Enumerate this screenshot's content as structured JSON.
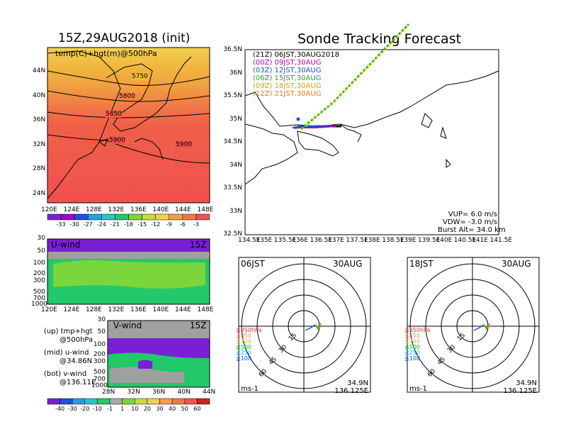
{
  "left_title": "15Z,29AUG2018 (init)",
  "right_title": "Sonde Tracking Forecast",
  "temp_panel": {
    "label": "temp(C)+hgt(m)@500hPa",
    "contours": [
      "5750",
      "5800",
      "5850",
      "5900",
      "5900"
    ],
    "lat_ticks": [
      "44N",
      "40N",
      "36N",
      "32N",
      "28N",
      "24N"
    ],
    "lon_ticks": [
      "120E",
      "124E",
      "128E",
      "132E",
      "136E",
      "140E",
      "144E",
      "148E"
    ],
    "colorbar_ticks": [
      "-33",
      "-30",
      "-27",
      "-24",
      "-21",
      "-18",
      "-15",
      "-12",
      "-9",
      "-6",
      "-3"
    ],
    "colorbar_colors": [
      "#7a1fd6",
      "#a000c8",
      "#1f4fe0",
      "#21a0e6",
      "#22c8c8",
      "#22c86a",
      "#7ad63a",
      "#c8dc3a",
      "#f0d050",
      "#f0a040",
      "#f07848",
      "#f05050"
    ]
  },
  "uwind_panel": {
    "label": "U-wind",
    "time": "15Z",
    "p_ticks": [
      "30",
      "50",
      "100",
      "200",
      "300",
      "500",
      "700",
      "1000"
    ],
    "lon_ticks": [
      "120E",
      "124E",
      "128E",
      "132E",
      "136E",
      "140E",
      "144E",
      "148E"
    ]
  },
  "vwind_panel": {
    "label": "V-wind",
    "time": "15Z",
    "p_ticks": [
      "30",
      "50",
      "100",
      "200",
      "300",
      "500",
      "700",
      "1000"
    ],
    "lat_ticks": [
      "28N",
      "32N",
      "36N",
      "40N",
      "44N"
    ]
  },
  "notes": [
    {
      "a": "(up) tmp+hgt",
      "b": "@500hPa"
    },
    {
      "a": "(mid) u-wind",
      "b": "@34.86N"
    },
    {
      "a": "(bot) v-wind",
      "b": "@136.11E"
    }
  ],
  "wind_colorbar": {
    "ticks": [
      "-40",
      "-30",
      "-20",
      "-10",
      "-1",
      "1",
      "10",
      "20",
      "30",
      "40",
      "50",
      "60"
    ],
    "colors": [
      "#7a1fd6",
      "#1f4fe0",
      "#21a0e6",
      "#22c8c8",
      "#22c86a",
      "#aaaaaa",
      "#7ad63a",
      "#c8dc3a",
      "#f0d050",
      "#f0a040",
      "#f07848",
      "#f05050",
      "#d02020"
    ]
  },
  "map_panel": {
    "lat_ticks": [
      "36.5N",
      "36N",
      "35.5N",
      "35N",
      "34.5N",
      "34N",
      "33.5N",
      "33N",
      "32.5N"
    ],
    "lon_ticks": [
      "134.5E",
      "135E",
      "135.5E",
      "136E",
      "136.5E",
      "137E",
      "137.5E",
      "138E",
      "138.5E",
      "139E",
      "139.5E",
      "140E",
      "140.5E",
      "141E",
      "141.5E"
    ],
    "legend": [
      {
        "text": "(21Z)  06JST,30AUG2018",
        "color": "#000000"
      },
      {
        "text": "(00Z)  09JST,30AUG",
        "color": "#b000b0"
      },
      {
        "text": "(03Z)  12JST,30AUG",
        "color": "#1f4fe0"
      },
      {
        "text": "(06Z)  15JST,30AUG",
        "color": "#22b022"
      },
      {
        "text": "(09Z)  18JST,30AUG",
        "color": "#e0a000"
      },
      {
        "text": "(12Z)  21JST,30AUG",
        "color": "#f07820"
      }
    ],
    "stats": {
      "vup": "VUP=  6.0 m/s",
      "vdw": "VDW= -3.0 m/s",
      "burst": "Burst Alt=  34.0 km"
    }
  },
  "hodo_06": {
    "time": "06JST",
    "date": "30AUG",
    "rings": [
      "15",
      "30",
      "45",
      "60"
    ],
    "levels": [
      {
        "text": "≧850hPa",
        "color": "#f03030"
      },
      {
        "text": "≦850",
        "color": "#f09030"
      },
      {
        "text": "≦700",
        "color": "#d0c030"
      },
      {
        "text": "≦500",
        "color": "#22b022"
      },
      {
        "text": "≦250",
        "color": "#21a0e6"
      },
      {
        "text": "≦100",
        "color": "#1f4fe0"
      }
    ],
    "pos_lat": "34.9N",
    "pos_lon": "136.125E",
    "unit": "ms-1"
  },
  "hodo_18": {
    "time": "18JST",
    "date": "30AUG",
    "rings": [
      "15",
      "30",
      "45",
      "60"
    ],
    "levels": [
      {
        "text": "≧850hPa",
        "color": "#f03030"
      },
      {
        "text": "≦850",
        "color": "#f09030"
      },
      {
        "text": "≦700",
        "color": "#d0c030"
      },
      {
        "text": "≦500",
        "color": "#22b022"
      },
      {
        "text": "≦250",
        "color": "#21a0e6"
      },
      {
        "text": "≦100",
        "color": "#1f4fe0"
      }
    ],
    "pos_lat": "34.9N",
    "pos_lon": "136.125E",
    "unit": "ms-1"
  }
}
